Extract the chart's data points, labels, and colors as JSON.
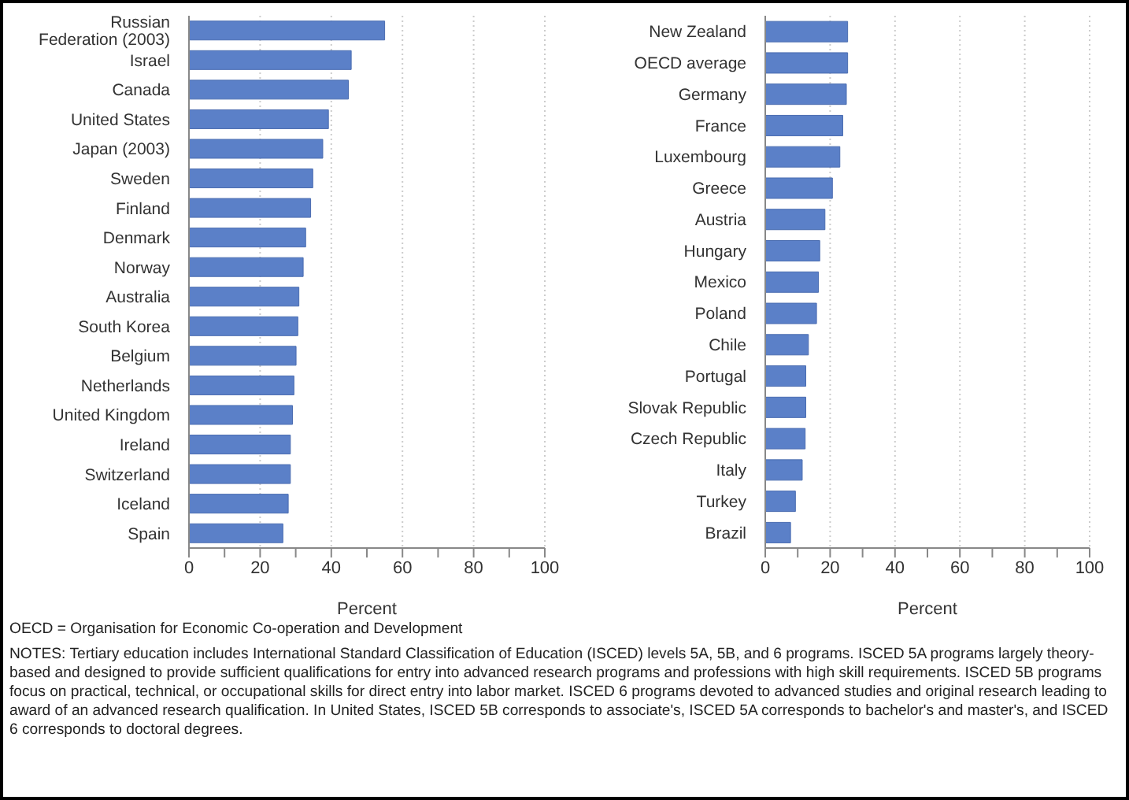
{
  "chart_data": [
    {
      "type": "bar",
      "orientation": "horizontal",
      "categories": [
        "Russian Federation (2003)",
        "Israel",
        "Canada",
        "United States",
        "Japan (2003)",
        "Sweden",
        "Finland",
        "Denmark",
        "Norway",
        "Australia",
        "South Korea",
        "Belgium",
        "Netherlands",
        "United Kingdom",
        "Ireland",
        "Switzerland",
        "Iceland",
        "Spain"
      ],
      "values": [
        55,
        45.6,
        44.8,
        39.2,
        37.6,
        34.8,
        34.2,
        32.8,
        32.1,
        30.9,
        30.6,
        30.1,
        29.5,
        29.1,
        28.5,
        28.5,
        27.9,
        26.4
      ],
      "color": "#5b80c8",
      "xlim": [
        0,
        100
      ],
      "xticks": [
        0,
        {
          "value": 10,
          "label": null
        },
        20,
        {
          "value": 30,
          "label": null
        },
        40,
        {
          "value": 50,
          "label": null
        },
        60,
        {
          "value": 70,
          "label": null
        },
        80,
        {
          "value": 90,
          "label": null
        },
        100
      ],
      "xlabel": "Percent",
      "grid": "x",
      "annotations": [
        "OECD = Organisation for Economic Co-operation and Development",
        "NOTES: Tertiary education includes International Standard Classification of Education (ISCED) levels 5A, 5B, and 6 programs. ISCED 5A programs largely theory-based and designed to provide sufficient qualifications for entry into advanced research programs and professions with high skill requirements. ISCED 5B programs focus on practical, technical, or occupational skills for direct entry into labor market. ISCED 6 programs devoted to advanced studies and original research leading to award of an advanced research qualification. In United States, ISCED 5B corresponds to associate's, ISCED 5A corresponds to bachelor's and master's, and ISCED 6 corresponds to doctoral degrees."
      ]
    },
    {
      "type": "bar",
      "orientation": "horizontal",
      "categories": [
        "New Zealand",
        "OECD average",
        "Germany",
        "France",
        "Luxembourg",
        "Greece",
        "Austria",
        "Hungary",
        "Mexico",
        "Poland",
        "Chile",
        "Portugal",
        "Slovak Republic",
        "Czech Republic",
        "Italy",
        "Turkey",
        "Brazil"
      ],
      "values": [
        25.4,
        25.4,
        25,
        23.9,
        23,
        20.7,
        18.4,
        16.8,
        16.4,
        15.8,
        13.3,
        12.5,
        12.5,
        12.3,
        11.4,
        9.3,
        7.8
      ],
      "color": "#5b80c8",
      "xlim": [
        0,
        100
      ],
      "xticks": [
        0,
        {
          "value": 10,
          "label": null
        },
        20,
        {
          "value": 30,
          "label": null
        },
        40,
        {
          "value": 50,
          "label": null
        },
        60,
        {
          "value": 70,
          "label": null
        },
        80,
        {
          "value": 90,
          "label": null
        },
        100
      ],
      "xlabel": "Percent",
      "grid": "x"
    }
  ]
}
